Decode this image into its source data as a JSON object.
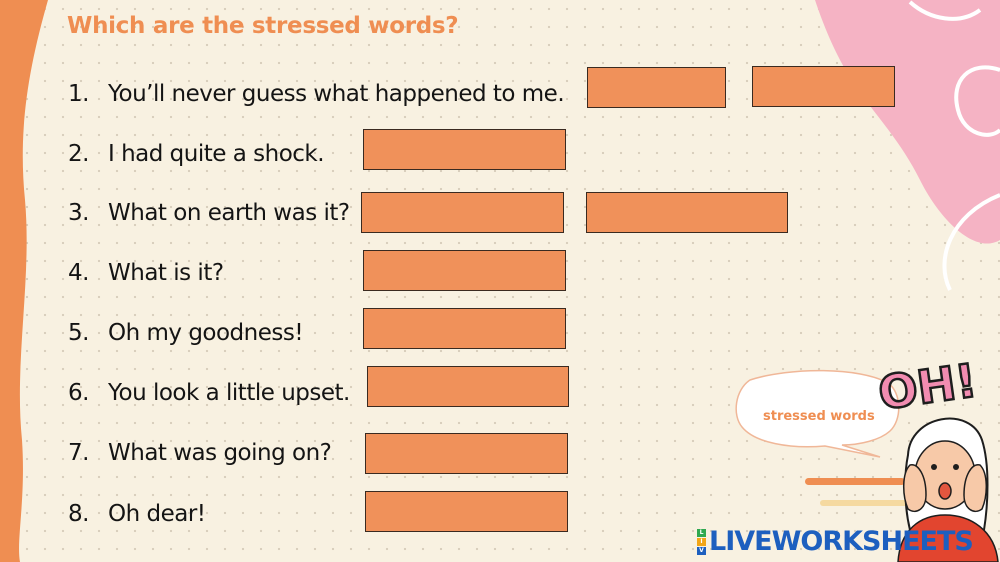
{
  "title": "Which are the stressed words?",
  "questions": [
    {
      "num": "1.",
      "text": "You’ll never guess what happened to me."
    },
    {
      "num": "2.",
      "text": "I had quite a shock."
    },
    {
      "num": "3.",
      "text": "What on earth was it?"
    },
    {
      "num": "4.",
      "text": "What is it?"
    },
    {
      "num": "5.",
      "text": "Oh my goodness!"
    },
    {
      "num": "6.",
      "text": "You look a little upset."
    },
    {
      "num": "7.",
      "text": "What was going on?"
    },
    {
      "num": "8.",
      "text": "Oh dear!"
    }
  ],
  "bubble": {
    "text": "stressed words"
  },
  "exclamation": "OH!",
  "logo": {
    "text": "LIVEWORKSHEETS"
  },
  "colors": {
    "accent": "#ef8e52",
    "answer_box": "#f0915a",
    "background": "#f8f1e1",
    "pink": "#f5b3c4",
    "logo_blue": "#1d5fbf"
  }
}
